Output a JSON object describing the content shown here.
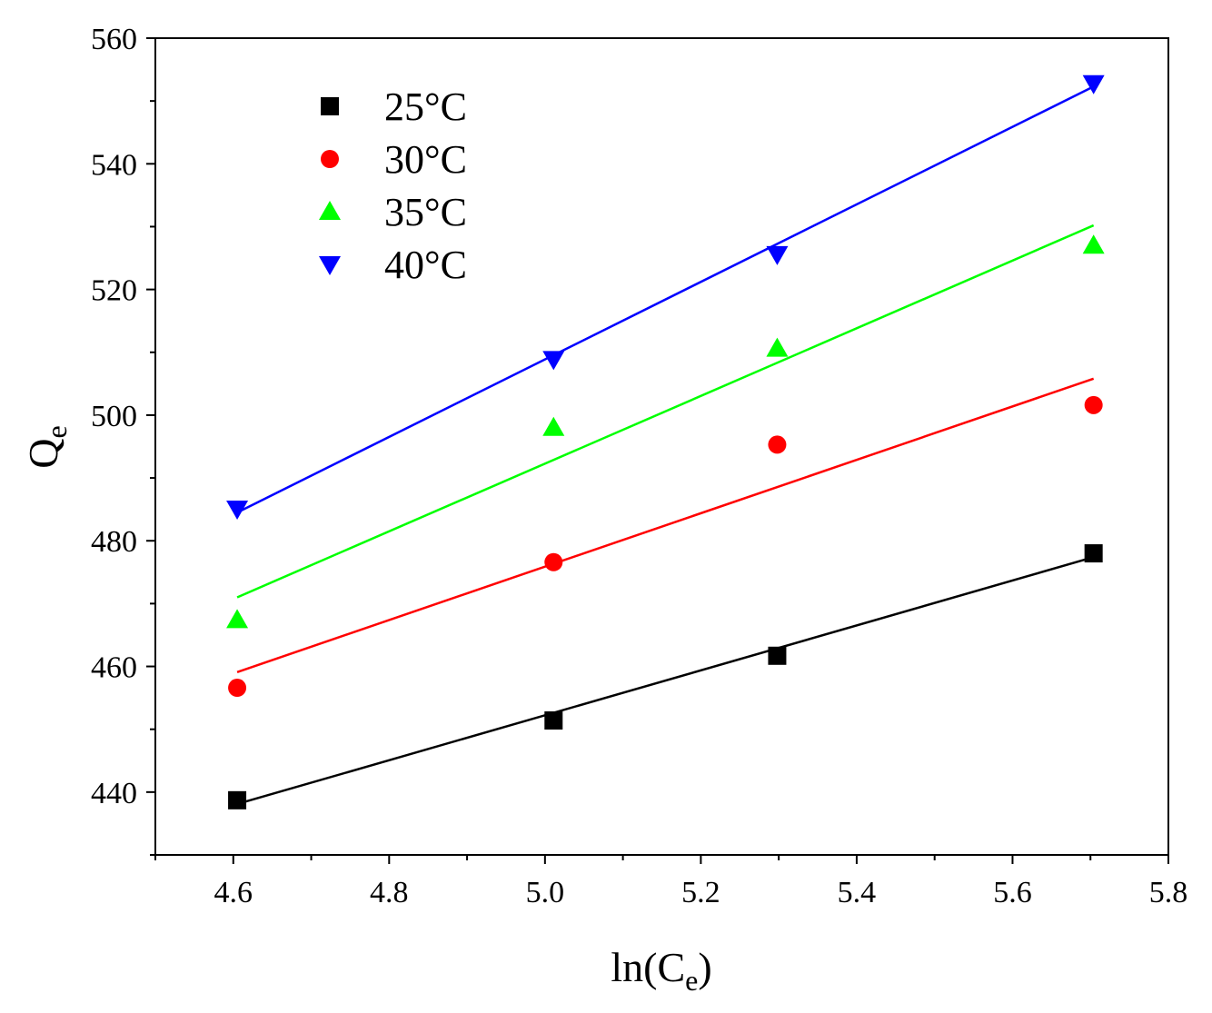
{
  "chart_data": {
    "type": "scatter",
    "title": "",
    "xlabel": "ln(C",
    "xlabel_sub": "e",
    "xlabel_close": ")",
    "ylabel": "Q",
    "ylabel_sub": "e",
    "xlim": [
      4.5,
      5.8
    ],
    "ylim": [
      430,
      560
    ],
    "xticks": [
      4.6,
      4.8,
      5.0,
      5.2,
      5.4,
      5.6,
      5.8
    ],
    "xtick_labels": [
      "4.6",
      "4.8",
      "5.0",
      "5.2",
      "5.4",
      "5.6",
      "5.8"
    ],
    "yticks": [
      440,
      460,
      480,
      500,
      520,
      540,
      560
    ],
    "ytick_labels": [
      "440",
      "460",
      "480",
      "500",
      "520",
      "540",
      "560"
    ],
    "x": [
      4.605,
      5.011,
      5.298,
      5.704
    ],
    "legend_position": "top-left",
    "series": [
      {
        "name": "25°C",
        "marker": "square",
        "color": "#000000",
        "values": [
          438.7,
          451.4,
          461.7,
          478.0
        ],
        "fit": {
          "x": [
            4.605,
            5.704
          ],
          "y": [
            438.1,
            477.4
          ]
        }
      },
      {
        "name": "30°C",
        "marker": "circle",
        "color": "#ff0000",
        "values": [
          456.6,
          476.6,
          495.3,
          501.6
        ],
        "fit": {
          "x": [
            4.605,
            5.704
          ],
          "y": [
            459.1,
            505.8
          ]
        }
      },
      {
        "name": "35°C",
        "marker": "triangle-up",
        "color": "#00ff00",
        "values": [
          467.4,
          498.0,
          510.6,
          527.0
        ],
        "fit": {
          "x": [
            4.605,
            5.704
          ],
          "y": [
            471.0,
            530.2
          ]
        }
      },
      {
        "name": "40°C",
        "marker": "triangle-down",
        "color": "#0000ff",
        "values": [
          485.1,
          508.9,
          525.6,
          552.8
        ],
        "fit": {
          "x": [
            4.605,
            5.704
          ],
          "y": [
            484.5,
            552.3
          ]
        }
      }
    ]
  }
}
